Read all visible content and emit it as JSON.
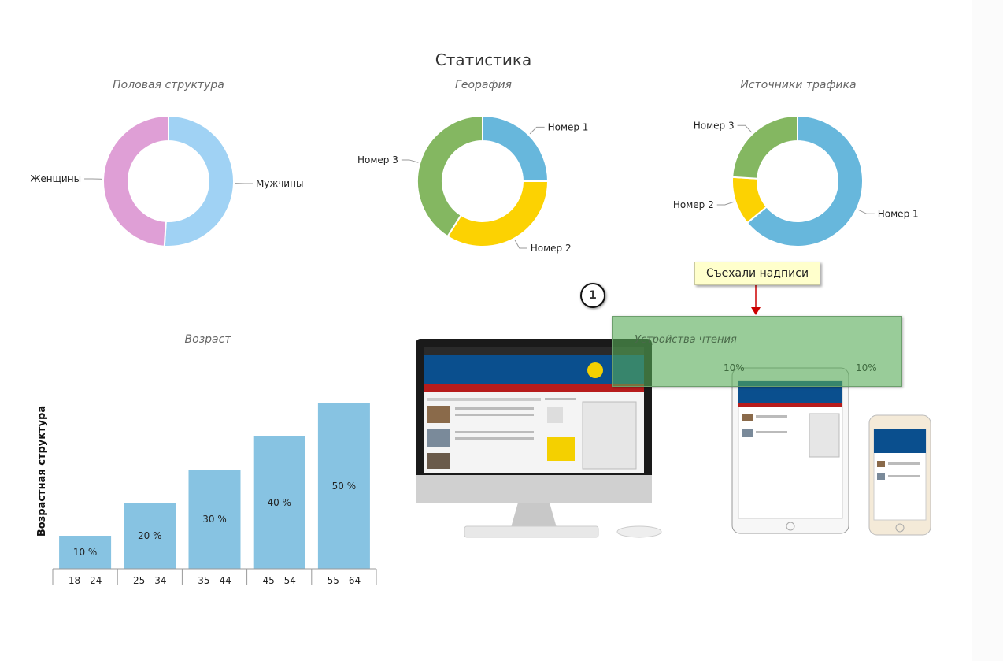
{
  "page_title": "Статистика",
  "annotation": {
    "callout_text": "Съехали надписи",
    "marker_number": "1"
  },
  "devices": {
    "title": "Устройства чтения",
    "labels": [
      "10%",
      "10%"
    ]
  },
  "chart_data": [
    {
      "type": "pie",
      "title": "Половая структура",
      "labels": [
        "Мужчины",
        "Женщины"
      ],
      "values": [
        51,
        49
      ],
      "colors": [
        "#a0d2f4",
        "#df9fd6"
      ]
    },
    {
      "type": "pie",
      "title": "Георафия",
      "labels": [
        "Номер 1",
        "Номер 2",
        "Номер 3"
      ],
      "values": [
        25,
        34,
        41
      ],
      "colors": [
        "#67b7dc",
        "#fcd202",
        "#84b761"
      ]
    },
    {
      "type": "pie",
      "title": "Источники трафика",
      "labels": [
        "Номер 1",
        "Номер 2",
        "Номер 3"
      ],
      "values": [
        64,
        12,
        24
      ],
      "colors": [
        "#67b7dc",
        "#fcd202",
        "#84b761"
      ]
    },
    {
      "type": "bar",
      "title": "Возраст",
      "ylabel": "Возрастная структура",
      "xlabel": "",
      "categories": [
        "18 - 24",
        "25 - 34",
        "35 - 44",
        "45 - 54",
        "55 - 64"
      ],
      "values": [
        10,
        20,
        30,
        40,
        50
      ],
      "data_labels": [
        "10 %",
        "20 %",
        "30 %",
        "40 %",
        "50 %"
      ],
      "ylim": [
        0,
        50
      ],
      "color": "#87c3e2"
    }
  ]
}
